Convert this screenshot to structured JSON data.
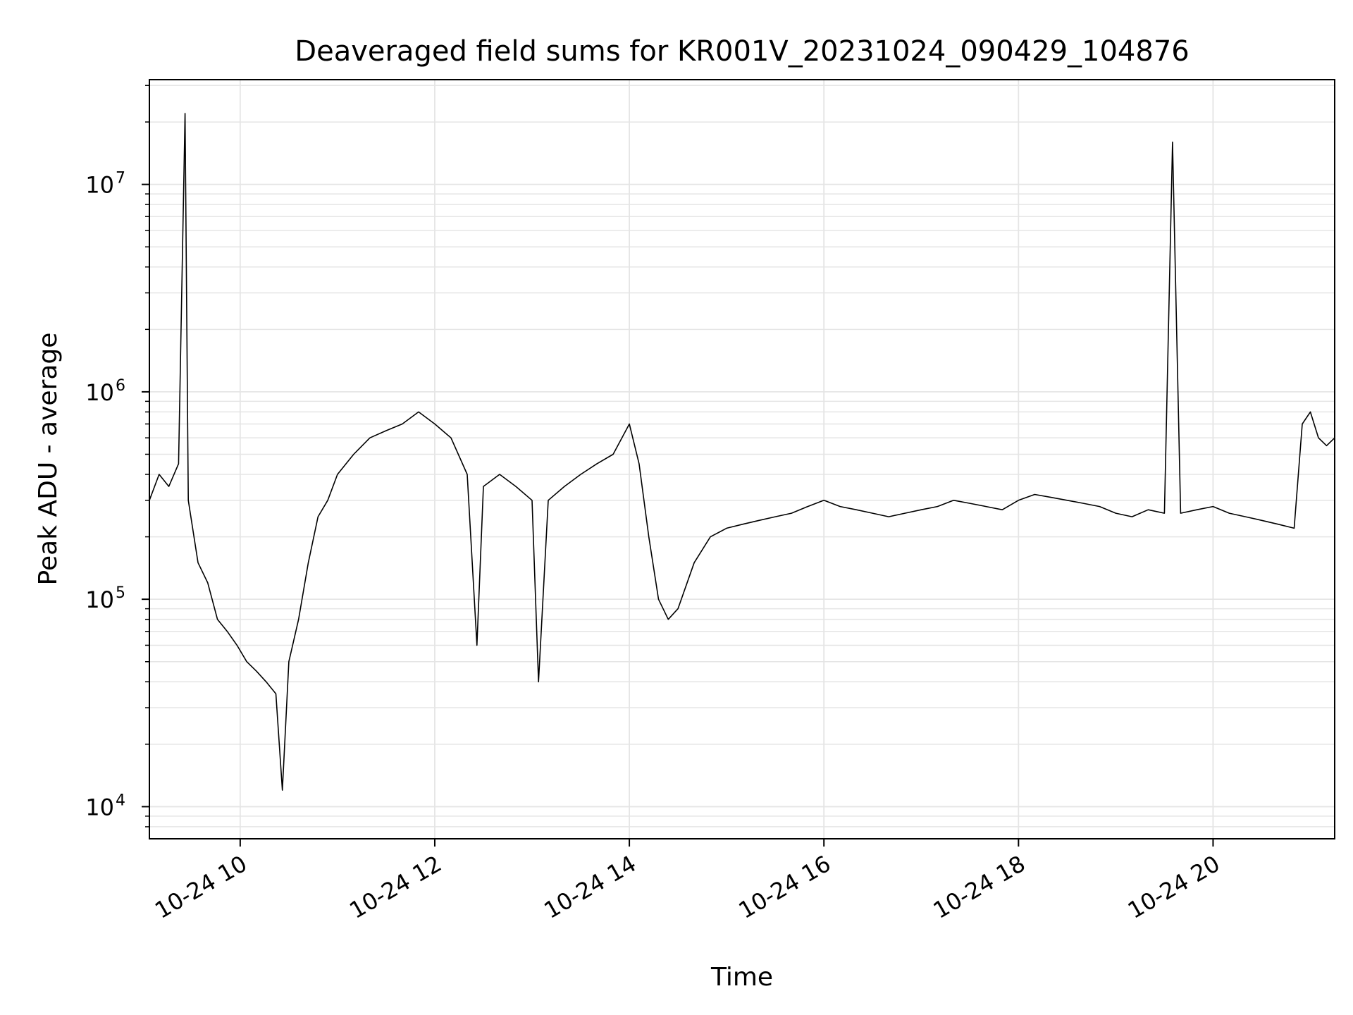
{
  "chart_data": {
    "type": "line",
    "title": "Deaveraged field sums for KR001V_20231024_090429_104876",
    "xlabel": "Time",
    "ylabel": "Peak ADU - average",
    "x_type": "datetime",
    "xlim": [
      "2023-10-24 09:04",
      "2023-10-24 21:15"
    ],
    "x_ticks": [
      "2023-10-24 10:00",
      "2023-10-24 12:00",
      "2023-10-24 14:00",
      "2023-10-24 16:00",
      "2023-10-24 18:00",
      "2023-10-24 20:00"
    ],
    "x_tick_labels": [
      "10-24 10",
      "10-24 12",
      "10-24 14",
      "10-24 16",
      "10-24 18",
      "10-24 20"
    ],
    "yscale": "log",
    "ylim": [
      7000,
      32000000
    ],
    "y_ticks": [
      {
        "base": "10",
        "exp": "4",
        "value": 10000
      },
      {
        "base": "10",
        "exp": "5",
        "value": 100000
      },
      {
        "base": "10",
        "exp": "6",
        "value": 1000000
      },
      {
        "base": "10",
        "exp": "7",
        "value": 10000000
      }
    ],
    "grid": true,
    "line_color": "#000000",
    "grid_color": "#e5e5e5",
    "series": [
      {
        "x": [
          "2023-10-24 09:04",
          "2023-10-24 09:10",
          "2023-10-24 09:16",
          "2023-10-24 09:22",
          "2023-10-24 09:26",
          "2023-10-24 09:28",
          "2023-10-24 09:34",
          "2023-10-24 09:40",
          "2023-10-24 09:46",
          "2023-10-24 09:52",
          "2023-10-24 09:58",
          "2023-10-24 10:04",
          "2023-10-24 10:10",
          "2023-10-24 10:16",
          "2023-10-24 10:22",
          "2023-10-24 10:26",
          "2023-10-24 10:30",
          "2023-10-24 10:36",
          "2023-10-24 10:42",
          "2023-10-24 10:48",
          "2023-10-24 10:54",
          "2023-10-24 11:00",
          "2023-10-24 11:10",
          "2023-10-24 11:20",
          "2023-10-24 11:30",
          "2023-10-24 11:40",
          "2023-10-24 11:50",
          "2023-10-24 12:00",
          "2023-10-24 12:10",
          "2023-10-24 12:20",
          "2023-10-24 12:26",
          "2023-10-24 12:30",
          "2023-10-24 12:40",
          "2023-10-24 12:50",
          "2023-10-24 13:00",
          "2023-10-24 13:04",
          "2023-10-24 13:10",
          "2023-10-24 13:20",
          "2023-10-24 13:30",
          "2023-10-24 13:40",
          "2023-10-24 13:50",
          "2023-10-24 14:00",
          "2023-10-24 14:06",
          "2023-10-24 14:12",
          "2023-10-24 14:18",
          "2023-10-24 14:24",
          "2023-10-24 14:30",
          "2023-10-24 14:40",
          "2023-10-24 14:50",
          "2023-10-24 15:00",
          "2023-10-24 15:10",
          "2023-10-24 15:20",
          "2023-10-24 15:30",
          "2023-10-24 15:40",
          "2023-10-24 15:50",
          "2023-10-24 16:00",
          "2023-10-24 16:10",
          "2023-10-24 16:20",
          "2023-10-24 16:30",
          "2023-10-24 16:40",
          "2023-10-24 16:50",
          "2023-10-24 17:00",
          "2023-10-24 17:10",
          "2023-10-24 17:20",
          "2023-10-24 17:30",
          "2023-10-24 17:40",
          "2023-10-24 17:50",
          "2023-10-24 18:00",
          "2023-10-24 18:10",
          "2023-10-24 18:20",
          "2023-10-24 18:30",
          "2023-10-24 18:40",
          "2023-10-24 18:50",
          "2023-10-24 19:00",
          "2023-10-24 19:10",
          "2023-10-24 19:20",
          "2023-10-24 19:30",
          "2023-10-24 19:35",
          "2023-10-24 19:40",
          "2023-10-24 19:50",
          "2023-10-24 20:00",
          "2023-10-24 20:10",
          "2023-10-24 20:20",
          "2023-10-24 20:30",
          "2023-10-24 20:40",
          "2023-10-24 20:50",
          "2023-10-24 20:55",
          "2023-10-24 21:00",
          "2023-10-24 21:05",
          "2023-10-24 21:10",
          "2023-10-24 21:15"
        ],
        "y": [
          300000,
          400000,
          350000,
          450000,
          22000000,
          300000,
          150000,
          120000,
          80000,
          70000,
          60000,
          50000,
          45000,
          40000,
          35000,
          12000,
          50000,
          80000,
          150000,
          250000,
          300000,
          400000,
          500000,
          600000,
          650000,
          700000,
          800000,
          700000,
          600000,
          400000,
          60000,
          350000,
          400000,
          350000,
          300000,
          40000,
          300000,
          350000,
          400000,
          450000,
          500000,
          700000,
          450000,
          200000,
          100000,
          80000,
          90000,
          150000,
          200000,
          220000,
          230000,
          240000,
          250000,
          260000,
          280000,
          300000,
          280000,
          270000,
          260000,
          250000,
          260000,
          270000,
          280000,
          300000,
          290000,
          280000,
          270000,
          300000,
          320000,
          310000,
          300000,
          290000,
          280000,
          260000,
          250000,
          270000,
          260000,
          16000000,
          260000,
          270000,
          280000,
          260000,
          250000,
          240000,
          230000,
          220000,
          700000,
          800000,
          600000,
          550000,
          600000
        ]
      }
    ]
  }
}
